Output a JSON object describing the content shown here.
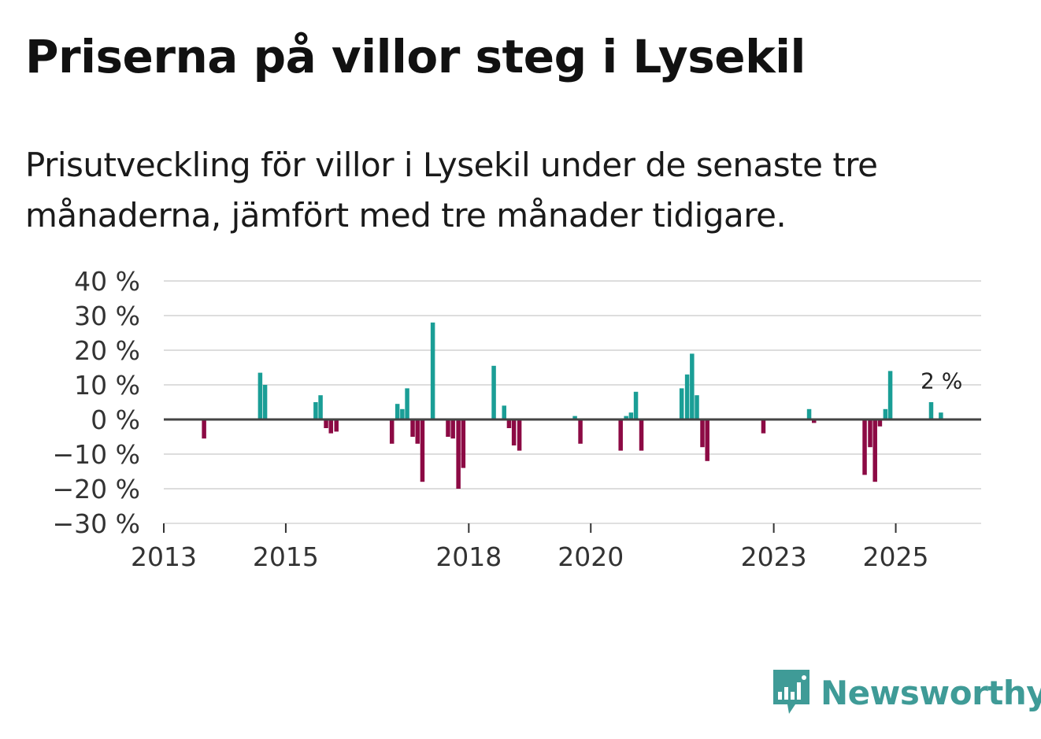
{
  "title": "Priserna på villor steg i Lysekil",
  "subtitle": "Prisutveckling för villor i Lysekil under de senaste tre månaderna, jämfört med tre månader tidigare.",
  "brand": {
    "name": "Newsworthy",
    "color": "#3f9b97",
    "icon": "newsworthy-logo-icon"
  },
  "colors": {
    "positive": "#1a9e96",
    "negative": "#8c0a44",
    "grid": "#dddddd",
    "zero_line": "#444444"
  },
  "chart_data": {
    "type": "bar",
    "title": "Priserna på villor steg i Lysekil",
    "xlabel": "",
    "ylabel": "",
    "ylim": [
      -30,
      40
    ],
    "yticks": [
      40,
      30,
      20,
      10,
      0,
      -10,
      -20,
      -30
    ],
    "ytick_labels": [
      "40 %",
      "30 %",
      "20 %",
      "10 %",
      "0 %",
      "−10 %",
      "−20 %",
      "−30 %"
    ],
    "xlim": [
      2013.0,
      2026.4
    ],
    "xticks": [
      2013,
      2015,
      2018,
      2020,
      2023,
      2025
    ],
    "xtick_labels": [
      "2013",
      "2015",
      "2018",
      "2020",
      "2023",
      "2025"
    ],
    "annotation": {
      "text": "2 %",
      "x": 2025.75,
      "y": 9
    },
    "series": [
      {
        "name": "Prisutveckling",
        "x": [
          2013.66,
          2014.58,
          2014.66,
          2015.49,
          2015.57,
          2015.66,
          2015.74,
          2015.83,
          2016.74,
          2016.83,
          2016.91,
          2016.99,
          2017.08,
          2017.16,
          2017.24,
          2017.41,
          2017.66,
          2017.74,
          2017.83,
          2017.91,
          2018.41,
          2018.58,
          2018.66,
          2018.74,
          2018.83,
          2019.74,
          2019.83,
          2020.49,
          2020.58,
          2020.66,
          2020.74,
          2020.83,
          2021.49,
          2021.58,
          2021.66,
          2021.74,
          2021.83,
          2021.91,
          2022.83,
          2023.58,
          2023.66,
          2024.49,
          2024.58,
          2024.66,
          2024.74,
          2024.83,
          2024.91,
          2025.58,
          2025.74
        ],
        "values": [
          -5.5,
          13.5,
          10,
          5,
          7,
          -2.5,
          -4,
          -3.5,
          -7,
          4.5,
          3,
          9,
          -5,
          -7,
          -18,
          28,
          -5,
          -5.5,
          -20,
          -14,
          15.5,
          4,
          -2.5,
          -7.5,
          -9,
          1,
          -7,
          -9,
          1,
          2,
          8,
          -9,
          9,
          13,
          19,
          7,
          -8,
          -12,
          -4,
          3,
          -1,
          -16,
          -8,
          -18,
          -2,
          3,
          14,
          5,
          2
        ]
      }
    ]
  }
}
